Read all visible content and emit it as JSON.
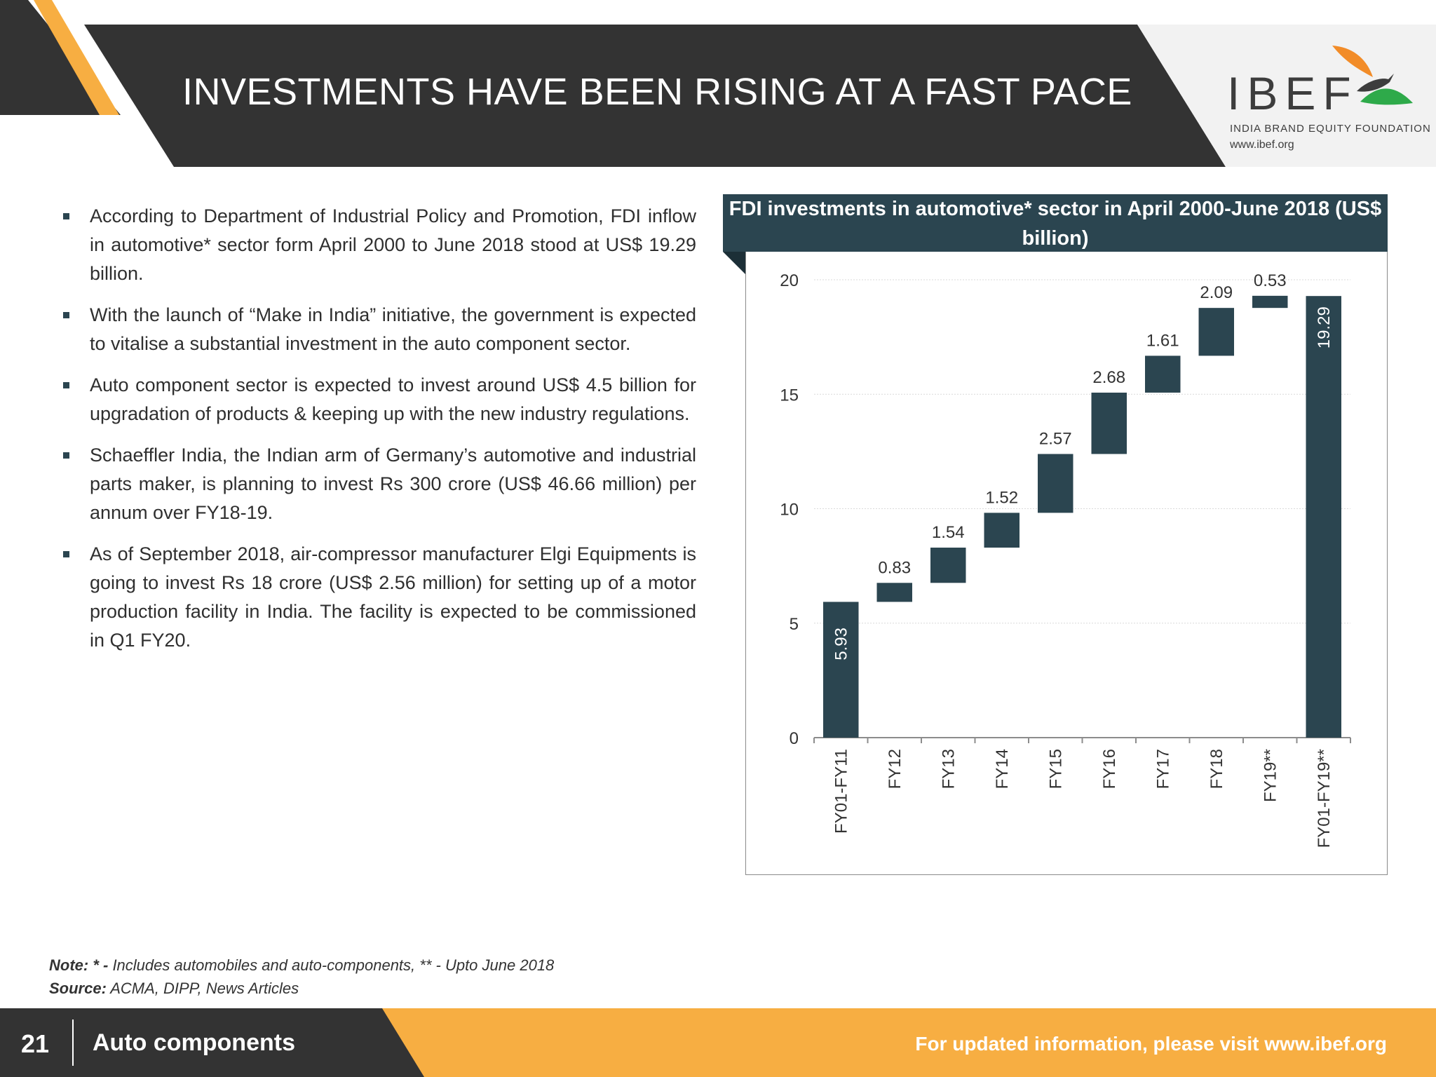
{
  "header": {
    "title": "INVESTMENTS HAVE BEEN RISING AT A FAST PACE"
  },
  "logo": {
    "name": "IBEF",
    "tagline": "INDIA BRAND EQUITY FOUNDATION",
    "url": "www.ibef.org"
  },
  "bullets": [
    "According to Department of Industrial Policy and Promotion, FDI inflow in automotive* sector form April 2000 to June 2018 stood at US$ 19.29 billion.",
    "With the launch of “Make in India” initiative, the government is expected to vitalise a substantial investment in the auto component sector.",
    "Auto component sector is expected to invest around US$ 4.5 billion for upgradation of products & keeping up with the new industry regulations.",
    "Schaeffler India, the Indian arm of Germany’s automotive and industrial parts maker, is planning to invest Rs 300 crore (US$ 46.66 million) per annum over FY18-19.",
    "As of September 2018, air-compressor manufacturer Elgi Equipments is going to invest Rs 18 crore (US$ 2.56 million) for setting up of a motor production facility in India. The facility is expected to be commissioned in Q1 FY20."
  ],
  "chart_data": {
    "type": "bar",
    "subtype": "waterfall",
    "title": "FDI investments in automotive* sector in April 2000-June 2018 (US$ billion)",
    "categories": [
      "FY01-FY11",
      "FY12",
      "FY13",
      "FY14",
      "FY15",
      "FY16",
      "FY17",
      "FY18",
      "FY19**",
      "FY01-FY19**"
    ],
    "values": [
      5.93,
      0.83,
      1.54,
      1.52,
      2.57,
      2.68,
      1.61,
      2.09,
      0.53,
      19.29
    ],
    "value_labels": [
      "5.93",
      "0.83",
      "1.54",
      "1.52",
      "2.57",
      "2.68",
      "1.61",
      "2.09",
      "0.53",
      "19.29"
    ],
    "total_bars": [
      0,
      9
    ],
    "yticks": [
      "0",
      "5",
      "10",
      "15",
      "20"
    ],
    "ylim": [
      0,
      20
    ],
    "grid": true,
    "legend": false,
    "bar_color": "#2b4550"
  },
  "notes": {
    "note_label": "Note: * -",
    "note_text": " Includes automobiles and auto-components, ** - Upto June 2018",
    "source_label": "Source:",
    "source_text": " ACMA, DIPP, News Articles"
  },
  "footer": {
    "page_number": "21",
    "section": "Auto components",
    "link_text": "For updated information, please visit www.ibef.org"
  },
  "colors": {
    "dark": "#333333",
    "accent_orange": "#f7ae42",
    "chart_teal": "#2b4550"
  }
}
